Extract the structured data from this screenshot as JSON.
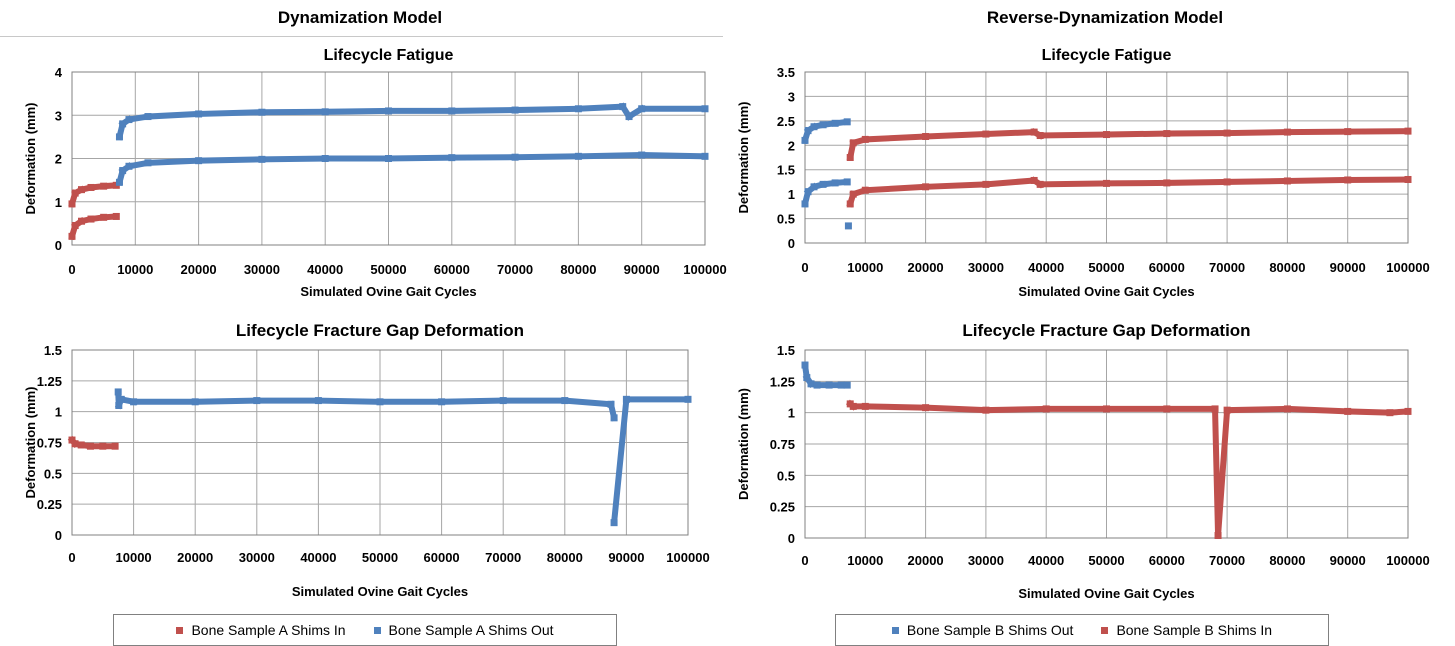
{
  "model_titles": {
    "left": "Dynamization Model",
    "right": "Reverse-Dynamization Model"
  },
  "colors": {
    "red": "#c0504d",
    "blue": "#4f81bd",
    "grid": "#a6a6a6",
    "frame": "#808080"
  },
  "legends": {
    "left": [
      {
        "label": "Bone Sample A Shims In",
        "color": "#c0504d"
      },
      {
        "label": "Bone Sample A Shims Out",
        "color": "#4f81bd"
      }
    ],
    "right": [
      {
        "label": "Bone Sample B Shims Out",
        "color": "#4f81bd"
      },
      {
        "label": "Bone Sample B Shims In",
        "color": "#c0504d"
      }
    ]
  },
  "chart_data": [
    {
      "id": "a-fatigue",
      "type": "scatter",
      "title": "Lifecycle Fatigue",
      "xlabel": "Simulated Ovine Gait Cycles",
      "ylabel": "Deformation (mm)",
      "xlim": [
        0,
        100000
      ],
      "ylim": [
        0,
        4
      ],
      "xticks": [
        "0",
        "10000",
        "20000",
        "30000",
        "40000",
        "50000",
        "60000",
        "70000",
        "80000",
        "90000",
        "100000"
      ],
      "yticks": [
        "0",
        "1",
        "2",
        "3",
        "4"
      ],
      "series": [
        {
          "name": "Bone Sample A Shims In",
          "color": "#c0504d",
          "x": [
            0,
            500,
            1500,
            3000,
            5000,
            7000
          ],
          "y": [
            0.95,
            1.2,
            1.28,
            1.33,
            1.36,
            1.38
          ]
        },
        {
          "name": "Bone Sample A Shims In",
          "color": "#c0504d",
          "x": [
            0,
            500,
            1500,
            3000,
            5000,
            7000
          ],
          "y": [
            0.2,
            0.45,
            0.55,
            0.6,
            0.64,
            0.66
          ]
        },
        {
          "name": "Bone Sample A Shims Out",
          "color": "#4f81bd",
          "x": [
            7500,
            8000,
            9000,
            12000,
            20000,
            30000,
            40000,
            50000,
            60000,
            70000,
            80000,
            87000,
            88000,
            90000,
            100000
          ],
          "y": [
            2.5,
            2.8,
            2.9,
            2.97,
            3.03,
            3.07,
            3.08,
            3.1,
            3.1,
            3.12,
            3.15,
            3.2,
            2.97,
            3.15,
            3.15
          ]
        },
        {
          "name": "Bone Sample A Shims Out",
          "color": "#4f81bd",
          "x": [
            7500,
            8000,
            9000,
            12000,
            20000,
            30000,
            40000,
            50000,
            60000,
            70000,
            80000,
            90000,
            100000
          ],
          "y": [
            1.45,
            1.72,
            1.82,
            1.9,
            1.95,
            1.98,
            2.0,
            2.0,
            2.02,
            2.03,
            2.05,
            2.08,
            2.05
          ]
        }
      ]
    },
    {
      "id": "b-fatigue",
      "type": "scatter",
      "title": "Lifecycle Fatigue",
      "xlabel": "Simulated Ovine Gait Cycles",
      "ylabel": "Deformation (mm)",
      "xlim": [
        0,
        100000
      ],
      "ylim": [
        0,
        3.5
      ],
      "xticks": [
        "0",
        "10000",
        "20000",
        "30000",
        "40000",
        "50000",
        "60000",
        "70000",
        "80000",
        "90000",
        "100000"
      ],
      "yticks": [
        "0",
        "0.5",
        "1",
        "1.5",
        "2",
        "2.5",
        "3",
        "3.5"
      ],
      "series": [
        {
          "name": "Bone Sample B Shims Out",
          "color": "#4f81bd",
          "x": [
            0,
            500,
            1500,
            3000,
            5000,
            7000
          ],
          "y": [
            2.1,
            2.3,
            2.38,
            2.42,
            2.45,
            2.48
          ]
        },
        {
          "name": "Bone Sample B Shims Out",
          "color": "#4f81bd",
          "x": [
            0,
            500,
            1500,
            3000,
            5000,
            7000,
            7200
          ],
          "y": [
            0.8,
            1.05,
            1.15,
            1.2,
            1.23,
            1.25,
            0.35
          ]
        },
        {
          "name": "Bone Sample B Shims In",
          "color": "#c0504d",
          "x": [
            7500,
            8000,
            10000,
            20000,
            30000,
            38000,
            39000,
            50000,
            60000,
            70000,
            80000,
            90000,
            100000
          ],
          "y": [
            1.75,
            2.05,
            2.12,
            2.18,
            2.23,
            2.27,
            2.2,
            2.22,
            2.24,
            2.25,
            2.27,
            2.28,
            2.29
          ]
        },
        {
          "name": "Bone Sample B Shims In",
          "color": "#c0504d",
          "x": [
            7500,
            8000,
            10000,
            20000,
            30000,
            38000,
            39000,
            50000,
            60000,
            70000,
            80000,
            90000,
            100000
          ],
          "y": [
            0.8,
            1.0,
            1.08,
            1.15,
            1.2,
            1.28,
            1.2,
            1.22,
            1.23,
            1.25,
            1.27,
            1.29,
            1.3
          ]
        }
      ]
    },
    {
      "id": "a-gap",
      "type": "scatter",
      "title": "Lifecycle Fracture Gap Deformation",
      "xlabel": "Simulated Ovine Gait Cycles",
      "ylabel": "Deformation (mm)",
      "xlim": [
        0,
        100000
      ],
      "ylim": [
        0,
        1.5
      ],
      "xticks": [
        "0",
        "10000",
        "20000",
        "30000",
        "40000",
        "50000",
        "60000",
        "70000",
        "80000",
        "90000",
        "100000"
      ],
      "yticks": [
        "0",
        "0.25",
        "0.5",
        "0.75",
        "1",
        "1.25",
        "1.5"
      ],
      "series": [
        {
          "name": "Bone Sample A Shims In",
          "color": "#c0504d",
          "x": [
            0,
            500,
            1500,
            3000,
            5000,
            7000
          ],
          "y": [
            0.77,
            0.74,
            0.73,
            0.72,
            0.72,
            0.72
          ]
        },
        {
          "name": "Bone Sample A Shims Out",
          "color": "#4f81bd",
          "x": [
            7500,
            7600,
            8000,
            10000,
            20000,
            30000,
            40000,
            50000,
            60000,
            70000,
            80000,
            87500,
            88000,
            88000,
            90000,
            100000
          ],
          "y": [
            1.16,
            1.05,
            1.1,
            1.08,
            1.08,
            1.09,
            1.09,
            1.08,
            1.08,
            1.09,
            1.09,
            1.06,
            0.95,
            0.1,
            1.1,
            1.1
          ]
        }
      ]
    },
    {
      "id": "b-gap",
      "type": "scatter",
      "title": "Lifecycle Fracture Gap Deformation",
      "xlabel": "Simulated Ovine Gait Cycles",
      "ylabel": "Deformation (mm)",
      "xlim": [
        0,
        100000
      ],
      "ylim": [
        0,
        1.5
      ],
      "xticks": [
        "0",
        "10000",
        "20000",
        "30000",
        "40000",
        "50000",
        "60000",
        "70000",
        "80000",
        "90000",
        "100000"
      ],
      "yticks": [
        "0",
        "0.25",
        "0.5",
        "0.75",
        "1",
        "1.25",
        "1.5"
      ],
      "series": [
        {
          "name": "Bone Sample B Shims Out",
          "color": "#4f81bd",
          "x": [
            0,
            300,
            1000,
            2000,
            4000,
            6000,
            7000
          ],
          "y": [
            1.38,
            1.28,
            1.23,
            1.22,
            1.22,
            1.22,
            1.22
          ]
        },
        {
          "name": "Bone Sample B Shims In",
          "color": "#c0504d",
          "x": [
            7500,
            8000,
            10000,
            20000,
            30000,
            40000,
            50000,
            60000,
            68000,
            68500,
            70000,
            80000,
            90000,
            97000,
            100000
          ],
          "y": [
            1.07,
            1.05,
            1.05,
            1.04,
            1.02,
            1.03,
            1.03,
            1.03,
            1.03,
            0.02,
            1.02,
            1.03,
            1.01,
            1.0,
            1.01
          ]
        }
      ]
    }
  ]
}
